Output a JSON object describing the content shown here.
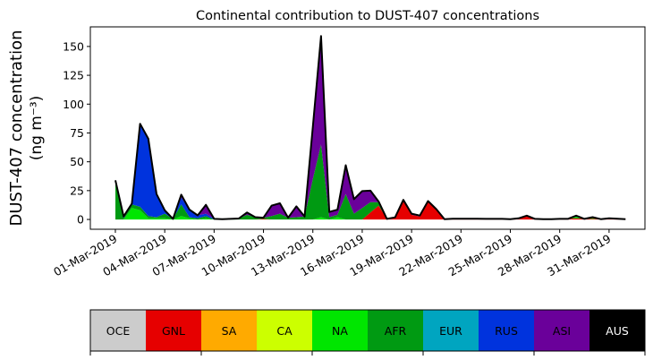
{
  "chart_data": {
    "type": "area",
    "stacked": true,
    "title": "Continental contribution to DUST-407 concentrations",
    "ylabel_line1": "DUST-407 concentration",
    "ylabel_line2": "(ng m⁻³)",
    "xlabel": "",
    "x_step_days": 0.5,
    "x_start": "01-Mar-2019",
    "xlim_days": [
      -1.52,
      32.18
    ],
    "ylim": [
      -8.5,
      167
    ],
    "yticks": [
      0,
      25,
      50,
      75,
      100,
      125,
      150
    ],
    "xtick_days": [
      0,
      3,
      6,
      9,
      12,
      15,
      18,
      21,
      24,
      27,
      30
    ],
    "xtick_labels": [
      "01-Mar-2019",
      "04-Mar-2019",
      "07-Mar-2019",
      "10-Mar-2019",
      "13-Mar-2019",
      "16-Mar-2019",
      "19-Mar-2019",
      "22-Mar-2019",
      "25-Mar-2019",
      "28-Mar-2019",
      "31-Mar-2019"
    ],
    "grid": false,
    "total_line_color": "#000000",
    "series": [
      {
        "name": "OCE",
        "color": "#cccccc",
        "values": [
          0,
          0,
          0,
          0,
          0,
          0,
          0,
          0,
          0,
          0,
          0,
          0,
          0,
          0,
          0,
          0,
          0,
          0,
          0,
          0,
          0,
          0,
          0,
          0,
          0,
          0,
          0,
          0,
          0,
          0,
          0,
          0,
          0,
          0,
          0,
          0,
          0,
          0,
          0,
          0,
          0,
          0,
          0,
          0,
          0,
          0,
          0,
          0,
          0,
          0,
          0,
          0,
          0,
          0,
          0,
          0,
          0,
          0,
          0,
          0,
          0,
          0,
          0
        ]
      },
      {
        "name": "GNL",
        "color": "#e60000",
        "values": [
          0,
          0,
          0,
          0,
          0,
          0,
          0,
          0,
          0,
          0,
          0,
          0,
          0,
          0,
          0,
          0,
          0,
          0,
          0.5,
          0,
          0,
          0,
          0,
          0,
          0,
          0,
          0,
          0,
          0,
          0,
          0,
          6,
          12,
          0.5,
          1.8,
          17,
          4,
          2.5,
          15,
          9,
          0.3,
          0.3,
          0.3,
          0.3,
          0.3,
          0.5,
          0.5,
          0.5,
          0.3,
          1,
          3.3,
          0.5,
          0.3,
          0.3,
          0.5,
          0.5,
          1,
          0.5,
          0.5,
          0.3,
          1,
          0.3,
          0.3
        ]
      },
      {
        "name": "SA",
        "color": "#ffaa00",
        "values": [
          0,
          0,
          0,
          0,
          0,
          0,
          0,
          0,
          0,
          0,
          0,
          0,
          0,
          0,
          0,
          0,
          0,
          0,
          0,
          0,
          0,
          0,
          0,
          0,
          0,
          0,
          0,
          0,
          0,
          0,
          0,
          0,
          0,
          0,
          0,
          0,
          0,
          0,
          0,
          0,
          0,
          0,
          0,
          0,
          0,
          0,
          0,
          0,
          0,
          0,
          0,
          0,
          0,
          0,
          0,
          0,
          0,
          0,
          0,
          0,
          0,
          0,
          0
        ]
      },
      {
        "name": "CA",
        "color": "#ccff00",
        "values": [
          0,
          0,
          0,
          0,
          0,
          0,
          0,
          0,
          0,
          0,
          0,
          0,
          0,
          0,
          0,
          0,
          0,
          0,
          0,
          0,
          0,
          0,
          0,
          0,
          0,
          0,
          0,
          0,
          0,
          0,
          0,
          0,
          0,
          0,
          0,
          0,
          0,
          0,
          0,
          0,
          0,
          0.4,
          0.4,
          0.4,
          0.4,
          0,
          0,
          0,
          0,
          0,
          0,
          0,
          0,
          0,
          0,
          0,
          0,
          0,
          0,
          0,
          0,
          0,
          0
        ]
      },
      {
        "name": "NA",
        "color": "#00e600",
        "values": [
          0,
          0,
          10,
          8,
          1,
          1,
          1,
          0,
          3,
          1,
          0,
          1,
          0,
          0,
          0,
          0,
          0,
          0,
          0,
          0,
          0,
          0,
          0,
          0,
          0,
          2,
          0,
          2,
          0,
          0,
          0,
          0,
          0,
          0,
          0,
          0,
          0,
          0,
          0,
          0,
          0,
          0,
          0,
          0,
          0,
          0,
          0,
          0,
          0,
          0,
          0,
          0,
          0,
          0,
          0,
          0,
          1,
          0,
          0.5,
          0,
          0,
          0,
          0
        ]
      },
      {
        "name": "AFR",
        "color": "#009a12",
        "values": [
          32,
          1,
          3,
          3,
          2,
          1,
          4,
          0.5,
          10,
          1,
          1,
          2,
          0,
          0,
          0.5,
          0.8,
          4,
          2,
          1,
          3,
          5,
          1.5,
          2,
          2.5,
          35,
          63,
          2,
          2,
          22,
          5,
          10,
          9,
          3,
          0,
          0,
          0,
          0,
          0,
          1,
          0,
          0,
          0,
          0,
          0,
          0,
          0,
          0,
          0,
          0,
          0,
          0,
          0,
          0,
          0,
          0,
          0,
          1,
          0,
          0.5,
          0,
          0,
          0,
          0
        ]
      },
      {
        "name": "EUR",
        "color": "#00a5c0",
        "values": [
          0,
          0,
          0,
          0,
          0,
          0,
          0,
          0,
          0,
          0,
          0,
          0,
          0,
          0,
          0,
          0,
          0,
          0,
          0,
          0,
          0,
          0,
          0,
          0,
          0,
          0,
          0,
          0,
          0,
          0,
          0,
          0,
          0,
          0,
          0,
          0,
          0,
          0,
          0,
          0,
          0,
          0,
          0,
          0,
          0,
          0,
          0,
          0,
          0,
          0,
          0,
          0,
          0,
          0,
          0,
          0,
          0,
          0,
          0,
          0,
          0,
          0,
          0
        ]
      },
      {
        "name": "RUS",
        "color": "#0033dd",
        "values": [
          2,
          1.6,
          0.7,
          72,
          67,
          20,
          3,
          0,
          6,
          6.5,
          2.5,
          2,
          0.5,
          0.3,
          0,
          0,
          0,
          0,
          0,
          0,
          0,
          0,
          0,
          0,
          0,
          0,
          0,
          0,
          0,
          0,
          0,
          0,
          0,
          0,
          0,
          0,
          0,
          0,
          0,
          0,
          0,
          0,
          0,
          0,
          0,
          0,
          0,
          0,
          0,
          0,
          0,
          0,
          0,
          0,
          0,
          0,
          0.3,
          0,
          0,
          0,
          0,
          0,
          0
        ]
      },
      {
        "name": "ASI",
        "color": "#6a009a",
        "values": [
          0,
          0,
          0,
          0,
          0,
          0,
          0,
          0,
          2.5,
          0,
          0,
          7.7,
          0,
          0,
          0,
          0,
          2,
          0,
          0,
          9,
          9,
          0,
          9.4,
          0,
          45,
          94,
          4.5,
          4.5,
          25,
          12.6,
          14.6,
          10,
          0.5,
          0,
          0,
          0,
          1,
          0.9,
          0,
          0,
          0,
          0,
          0,
          0,
          0,
          0,
          0,
          0,
          0,
          0,
          0,
          0,
          0,
          0,
          0,
          0,
          0,
          0,
          0.5,
          0,
          0,
          0.3,
          0
        ]
      },
      {
        "name": "AUS",
        "color": "#000000",
        "values": [
          0,
          0,
          0,
          0,
          0,
          0,
          0,
          0,
          0,
          0,
          0,
          0,
          0,
          0,
          0,
          0,
          0,
          0,
          0,
          0,
          0,
          0,
          0,
          0,
          0,
          0,
          0,
          0,
          0,
          0,
          0,
          0,
          0,
          0,
          0,
          0,
          0,
          0,
          0,
          0,
          0,
          0,
          0,
          0,
          0,
          0,
          0,
          0,
          0,
          0,
          0,
          0,
          0,
          0,
          0,
          0,
          0,
          0,
          0,
          0,
          0,
          0,
          0
        ]
      }
    ],
    "colorbar": {
      "orientation": "horizontal",
      "label_colors": {
        "AUS": "#ffffff"
      }
    }
  }
}
